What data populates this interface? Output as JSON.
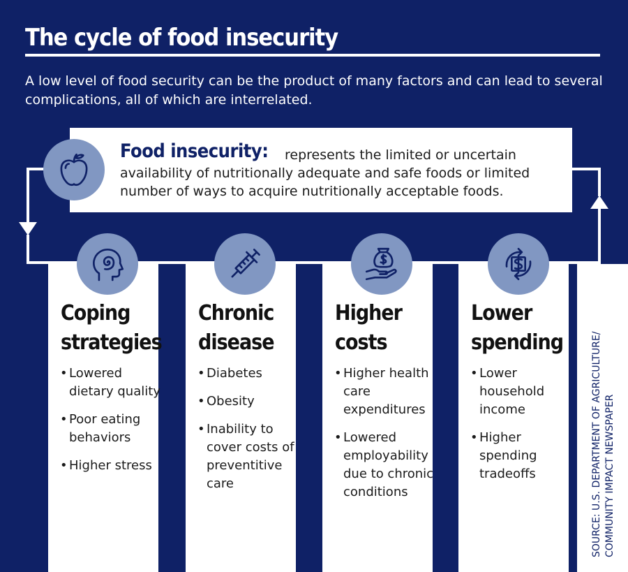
{
  "title": "The cycle of food insecurity",
  "subtitle": "A low level of food security can be the product of many factors and can lead to several complications, all of which are interrelated.",
  "definition": {
    "term": "Food insecurity:",
    "text": "represents the limited or uncertain availability of nutritionally adequate and safe foods or limited number of ways to acquire nutritionally acceptable foods.",
    "icon": "apple-icon"
  },
  "columns": [
    {
      "icon": "head-spiral-icon",
      "title": "Coping strategies",
      "items": [
        "Lowered dietary quality",
        "Poor eating behaviors",
        "Higher stress"
      ]
    },
    {
      "icon": "syringe-icon",
      "title": "Chronic disease",
      "items": [
        "Diabetes",
        "Obesity",
        "Inability to cover costs of preventitive care"
      ]
    },
    {
      "icon": "money-bag-hand-icon",
      "title": "Higher costs",
      "items": [
        "Higher health care expenditures",
        "Lowered employability due to chronic conditions"
      ]
    },
    {
      "icon": "dollar-cycle-icon",
      "title": "Lower spending",
      "items": [
        "Lower household income",
        "Higher spending tradeoffs"
      ]
    }
  ],
  "source": "SOURCE: U.S. DEPARTMENT OF AGRICULTURE/ COMMUNITY IMPACT NEWSPAPER",
  "colors": {
    "background": "#0f2166",
    "icon_circle": "#8197c2",
    "panel": "#ffffff"
  }
}
